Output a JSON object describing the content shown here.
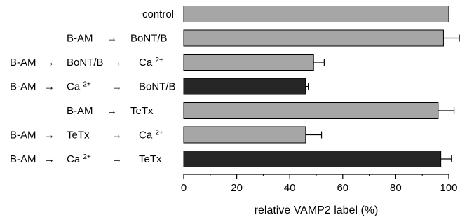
{
  "chart_data": {
    "type": "bar",
    "orientation": "horizontal",
    "xlabel": "relative VAMP2 label (%)",
    "xlim": [
      0,
      100
    ],
    "xticks": [
      0,
      20,
      40,
      60,
      80,
      100
    ],
    "grid": false,
    "categories": [
      {
        "steps": [
          "control"
        ]
      },
      {
        "steps": [
          "B-AM",
          "BoNT/B"
        ]
      },
      {
        "steps": [
          "B-AM",
          "BoNT/B",
          "Ca 2+"
        ]
      },
      {
        "steps": [
          "B-AM",
          "Ca 2+",
          "BoNT/B"
        ]
      },
      {
        "steps": [
          "B-AM",
          "TeTx"
        ]
      },
      {
        "steps": [
          "B-AM",
          "TeTx",
          "Ca 2+"
        ]
      },
      {
        "steps": [
          "B-AM",
          "Ca 2+",
          "TeTx"
        ]
      }
    ],
    "arrow_glyph": "→",
    "values": [
      100,
      98,
      49,
      46,
      96,
      46,
      97
    ],
    "errors": [
      0,
      6,
      4,
      1,
      6,
      6,
      4
    ],
    "bar_colors": [
      "#a6a6a6",
      "#a6a6a6",
      "#a6a6a6",
      "#262626",
      "#a6a6a6",
      "#a6a6a6",
      "#262626"
    ]
  }
}
